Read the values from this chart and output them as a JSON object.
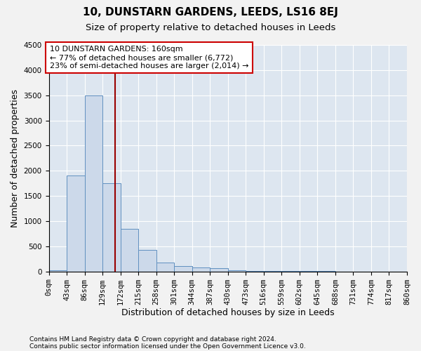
{
  "title": "10, DUNSTARN GARDENS, LEEDS, LS16 8EJ",
  "subtitle": "Size of property relative to detached houses in Leeds",
  "xlabel": "Distribution of detached houses by size in Leeds",
  "ylabel": "Number of detached properties",
  "footnote1": "Contains HM Land Registry data © Crown copyright and database right 2024.",
  "footnote2": "Contains public sector information licensed under the Open Government Licence v3.0.",
  "bin_edges": [
    0,
    43,
    86,
    129,
    172,
    215,
    258,
    301,
    344,
    387,
    430,
    473,
    516,
    559,
    602,
    645,
    688,
    731,
    774,
    817,
    860
  ],
  "bar_heights": [
    30,
    1900,
    3500,
    1750,
    850,
    430,
    175,
    110,
    80,
    60,
    30,
    15,
    10,
    8,
    5,
    4,
    3,
    2,
    1,
    1
  ],
  "bar_color": "#ccd9ea",
  "bar_edge_color": "#6090c0",
  "grid_color": "#ffffff",
  "bg_color": "#dde6f0",
  "fig_bg_color": "#f2f2f2",
  "property_size": 160,
  "vline_color": "#990000",
  "annotation_line1": "10 DUNSTARN GARDENS: 160sqm",
  "annotation_line2": "← 77% of detached houses are smaller (6,772)",
  "annotation_line3": "23% of semi-detached houses are larger (2,014) →",
  "annotation_box_color": "#cc0000",
  "ylim": [
    0,
    4500
  ],
  "xlim": [
    0,
    860
  ],
  "title_fontsize": 11,
  "subtitle_fontsize": 9.5,
  "tick_fontsize": 7.5,
  "label_fontsize": 9,
  "annotation_fontsize": 8,
  "footnote_fontsize": 6.5
}
